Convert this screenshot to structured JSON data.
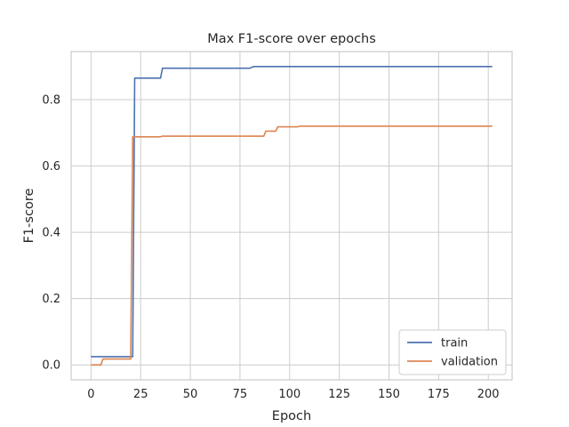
{
  "chart_data": {
    "type": "line",
    "title": "Max F1-score over epochs",
    "xlabel": "Epoch",
    "ylabel": "F1-score",
    "xlim": [
      -10,
      212
    ],
    "ylim": [
      -0.045,
      0.945
    ],
    "xticks": [
      0,
      25,
      50,
      75,
      100,
      125,
      150,
      175,
      200
    ],
    "yticks": [
      0.0,
      0.2,
      0.4,
      0.6,
      0.8
    ],
    "ytick_labels": [
      "0.0",
      "0.2",
      "0.4",
      "0.6",
      "0.8"
    ],
    "grid": true,
    "legend_position": "bottom-right",
    "series": [
      {
        "name": "train",
        "color": "#4c72b0",
        "points": [
          [
            0,
            0.025
          ],
          [
            21,
            0.025
          ],
          [
            22,
            0.865
          ],
          [
            35,
            0.865
          ],
          [
            36,
            0.895
          ],
          [
            80,
            0.895
          ],
          [
            82,
            0.9
          ],
          [
            202,
            0.9
          ]
        ]
      },
      {
        "name": "validation",
        "color": "#dd8452",
        "points": [
          [
            0,
            0.0
          ],
          [
            5,
            0.0
          ],
          [
            6,
            0.018
          ],
          [
            20,
            0.018
          ],
          [
            21,
            0.688
          ],
          [
            35,
            0.688
          ],
          [
            36,
            0.69
          ],
          [
            87,
            0.69
          ],
          [
            88,
            0.705
          ],
          [
            93,
            0.705
          ],
          [
            94,
            0.718
          ],
          [
            104,
            0.718
          ],
          [
            105,
            0.72
          ],
          [
            202,
            0.72
          ]
        ]
      }
    ]
  }
}
